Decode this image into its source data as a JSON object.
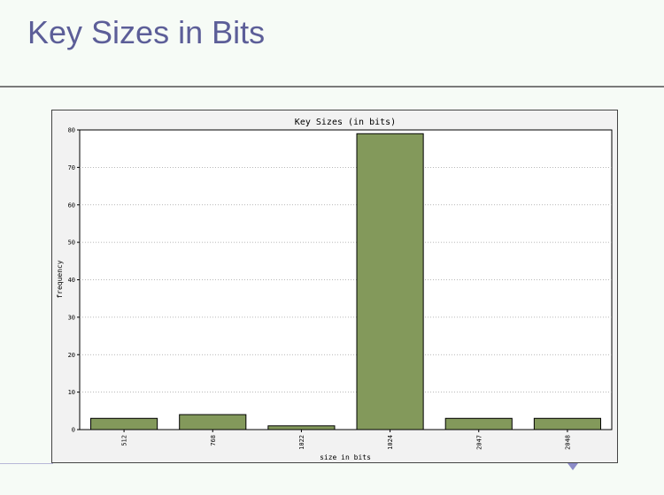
{
  "slide": {
    "title": "Key Sizes in Bits"
  },
  "chart_data": {
    "type": "bar",
    "title": "Key Sizes (in bits)",
    "xlabel": "size in bits",
    "ylabel": "frequency",
    "categories": [
      "512",
      "768",
      "1022",
      "1024",
      "2047",
      "2048"
    ],
    "values": [
      3,
      4,
      1,
      79,
      3,
      3
    ],
    "ylim": [
      0,
      80
    ],
    "yticks": [
      0,
      10,
      20,
      30,
      40,
      50,
      60,
      70,
      80
    ],
    "grid": true,
    "bar_color": "#83995b",
    "bar_edge_color": "#000000"
  }
}
